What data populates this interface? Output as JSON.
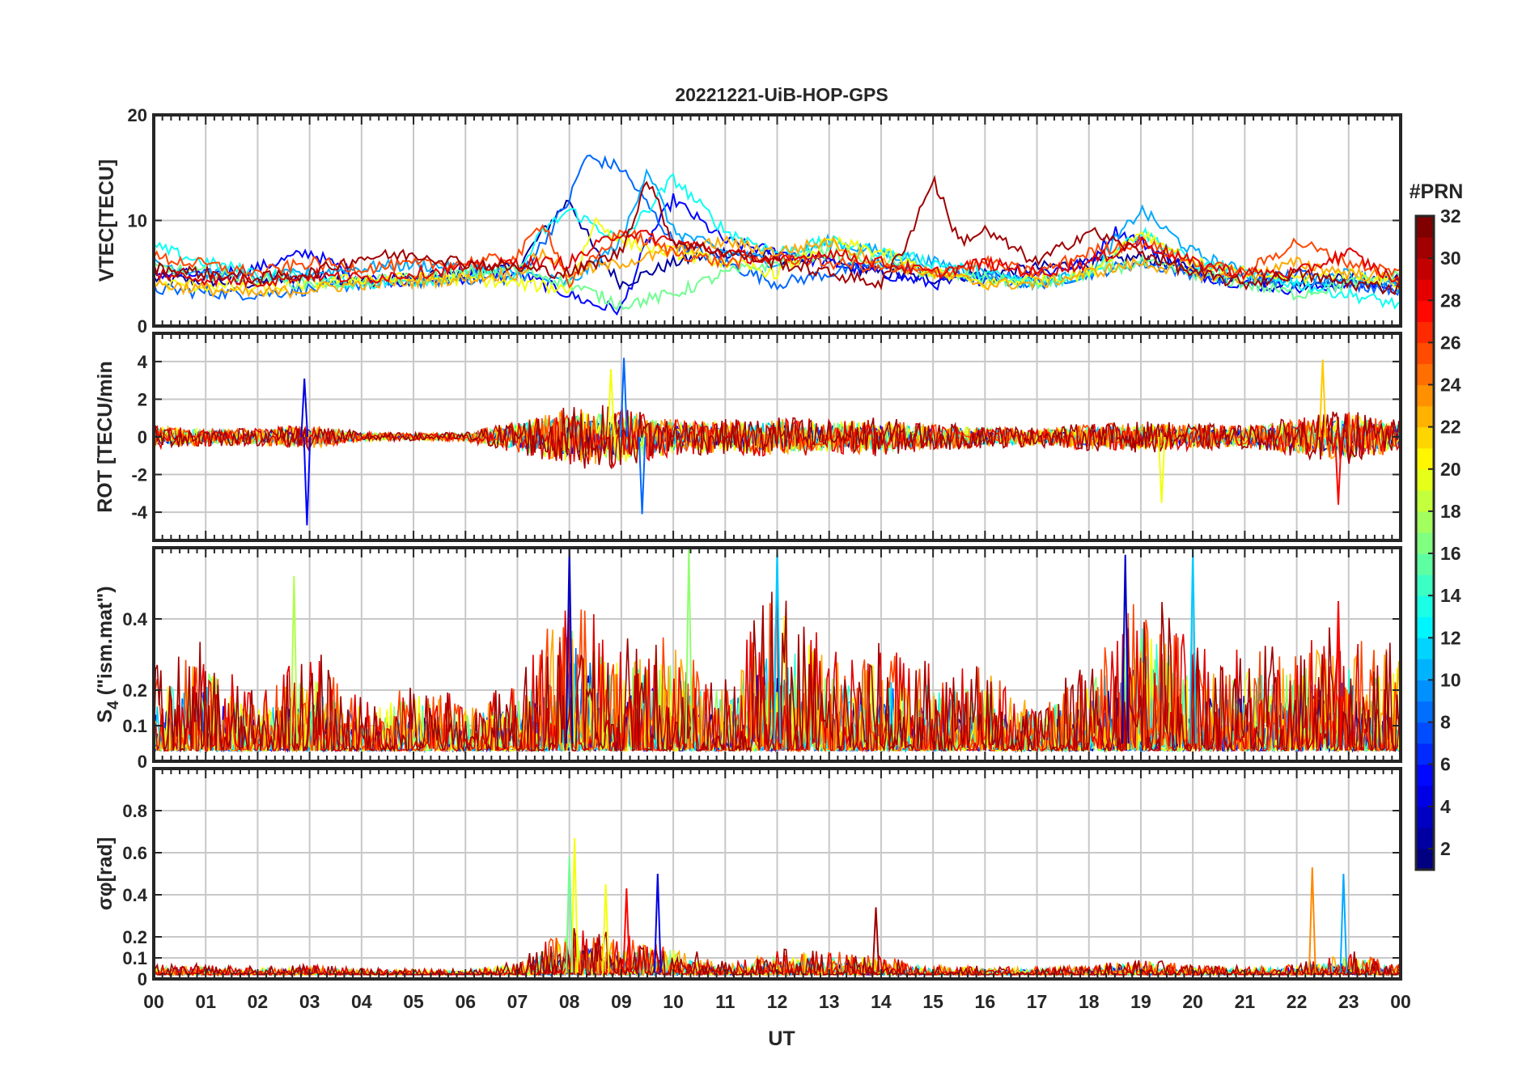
{
  "chart_data": {
    "type": "line",
    "title": "20221221-UiB-HOP-GPS",
    "xlabel": "UT",
    "x_range": [
      0,
      24
    ],
    "x_ticks": [
      "00",
      "01",
      "02",
      "03",
      "04",
      "05",
      "06",
      "07",
      "08",
      "09",
      "10",
      "11",
      "12",
      "13",
      "14",
      "15",
      "16",
      "17",
      "18",
      "19",
      "20",
      "21",
      "22",
      "23",
      "00"
    ],
    "grid": true,
    "colorbar": {
      "label": "#PRN",
      "range": [
        1,
        32
      ],
      "ticks": [
        "2",
        "4",
        "6",
        "8",
        "10",
        "12",
        "14",
        "16",
        "18",
        "20",
        "22",
        "24",
        "26",
        "28",
        "30",
        "32"
      ],
      "colormap": "jet",
      "colors": [
        "#00008f",
        "#0000ff",
        "#0080ff",
        "#00ffff",
        "#80ff80",
        "#ffff00",
        "#ff8000",
        "#ff0000",
        "#800000"
      ]
    },
    "panels": [
      {
        "id": "vtec",
        "ylabel": "VTEC[TECU]",
        "ylim": [
          0,
          20
        ],
        "ytick_values": [
          0,
          10,
          20
        ],
        "ytick_labels": [
          "0",
          "10",
          "20"
        ],
        "series": [
          {
            "prn": 2,
            "x": [
              0,
              1,
              2,
              3,
              4,
              5,
              6,
              7,
              7.5,
              8,
              8.5,
              9,
              10,
              11,
              12,
              13,
              14,
              15,
              16,
              17,
              18,
              19,
              20,
              21,
              22,
              23,
              24
            ],
            "y": [
              4.5,
              4.3,
              4.0,
              4.8,
              4.2,
              4.5,
              5.0,
              5.5,
              9,
              12,
              7,
              4,
              6,
              7,
              6.5,
              6,
              5,
              4.5,
              5,
              5.5,
              6,
              6.5,
              5.5,
              4.5,
              4,
              4.5,
              4.5
            ]
          },
          {
            "prn": 5,
            "x": [
              0,
              1,
              2,
              3,
              4,
              5,
              6,
              7,
              8,
              8.5,
              9,
              9.5,
              10,
              11,
              12,
              13,
              14,
              15,
              16,
              17,
              18,
              18.5,
              19,
              20,
              21,
              22,
              23,
              24
            ],
            "y": [
              5,
              4.8,
              5.5,
              7,
              4.5,
              4.2,
              4.6,
              5,
              3,
              2,
              1.5,
              8,
              12,
              8,
              7,
              6,
              5,
              4,
              4.5,
              5,
              6,
              9,
              8,
              5,
              4,
              3.5,
              4,
              4
            ]
          },
          {
            "prn": 8,
            "x": [
              0,
              1,
              2,
              3,
              4,
              5,
              6,
              7,
              7.5,
              8,
              8.3,
              9,
              10,
              11,
              12,
              13,
              14,
              15,
              16,
              17,
              18,
              19,
              20,
              21,
              22,
              23,
              24
            ],
            "y": [
              3.5,
              3.2,
              3,
              3.5,
              4,
              4.2,
              4.5,
              4.5,
              8,
              12,
              16,
              15,
              8,
              6,
              4,
              5,
              6,
              5,
              4.5,
              4,
              5,
              6,
              5,
              4,
              5,
              4,
              3.5
            ]
          },
          {
            "prn": 10,
            "x": [
              0,
              1,
              2,
              3,
              4,
              5,
              6,
              7,
              8,
              9,
              9.5,
              10,
              11,
              12,
              13,
              14,
              15,
              16,
              17,
              18,
              19,
              20,
              21,
              22,
              23,
              24
            ],
            "y": [
              6,
              5,
              4.5,
              5,
              5.5,
              5.8,
              5.5,
              5,
              4,
              8,
              15,
              9,
              7,
              6,
              8,
              7,
              6,
              5,
              4,
              5,
              11,
              7,
              5,
              4,
              5,
              3.5
            ]
          },
          {
            "prn": 13,
            "x": [
              0,
              1,
              2,
              3,
              4,
              5,
              6,
              7,
              7.5,
              8,
              9,
              10,
              11,
              12,
              13,
              14,
              15,
              16,
              17,
              18,
              19,
              20,
              21,
              22,
              23,
              24
            ],
            "y": [
              7.5,
              6,
              5,
              4.5,
              4,
              4.3,
              4.8,
              5,
              9,
              11,
              8,
              14,
              9,
              7,
              8,
              7,
              6,
              5,
              4,
              5,
              9,
              6,
              5,
              4,
              3,
              2
            ]
          },
          {
            "prn": 16,
            "x": [
              0,
              1,
              2,
              3,
              4,
              5,
              6,
              7,
              8,
              9,
              10,
              11,
              12,
              13,
              14,
              15,
              16,
              17,
              18,
              19,
              20,
              21,
              22,
              23,
              24
            ],
            "y": [
              5.5,
              5,
              4.5,
              4,
              4.2,
              4.5,
              5,
              5.5,
              4,
              2,
              3,
              5,
              6,
              7,
              6,
              5,
              4.5,
              4,
              5,
              6,
              5,
              4,
              3,
              4,
              5
            ]
          },
          {
            "prn": 20,
            "x": [
              0,
              1,
              2,
              3,
              4,
              5,
              6,
              7,
              8,
              8.5,
              9,
              10,
              11,
              12,
              13,
              14,
              15,
              16,
              17,
              18,
              19,
              20,
              21,
              22,
              23,
              24
            ],
            "y": [
              4,
              3.8,
              3.5,
              4,
              4.5,
              4.5,
              4.5,
              4,
              3.5,
              10,
              8,
              7,
              6,
              5,
              8,
              7,
              5,
              4,
              4.5,
              5,
              9,
              6,
              5,
              4.5,
              5,
              4
            ]
          },
          {
            "prn": 23,
            "x": [
              0,
              1,
              2,
              3,
              4,
              5,
              6,
              7,
              7.5,
              8,
              9,
              10,
              11,
              12,
              13,
              14,
              15,
              16,
              17,
              18,
              19,
              20,
              21,
              22,
              23,
              24
            ],
            "y": [
              4,
              3.5,
              3,
              3.5,
              4,
              4.2,
              4.5,
              5,
              7,
              5,
              6,
              7,
              8,
              7,
              8,
              6,
              5,
              4,
              4,
              5,
              6,
              5,
              4.5,
              6,
              5,
              4.5
            ]
          },
          {
            "prn": 26,
            "x": [
              0,
              1,
              2,
              3,
              4,
              5,
              6,
              7,
              7.5,
              8,
              9,
              10,
              11,
              12,
              13,
              14,
              15,
              16,
              17,
              18,
              19,
              20,
              21,
              22,
              23,
              24
            ],
            "y": [
              6.5,
              5.8,
              5,
              6,
              5.5,
              5.8,
              6,
              6.5,
              10,
              4,
              9,
              7,
              6,
              6.5,
              6,
              5.5,
              5,
              6,
              5,
              7,
              8,
              6,
              5,
              8,
              6,
              5
            ]
          },
          {
            "prn": 29,
            "x": [
              0,
              1,
              2,
              3,
              4,
              5,
              6,
              7,
              8,
              9,
              10,
              11,
              12,
              13,
              14,
              15,
              16,
              17,
              18,
              19,
              20,
              21,
              22,
              23,
              24
            ],
            "y": [
              5,
              4.5,
              4.2,
              4.8,
              4.5,
              5,
              5.5,
              6,
              6,
              9,
              8,
              7,
              6,
              7,
              6,
              5,
              6,
              5,
              6,
              8,
              6,
              5,
              5,
              7,
              4
            ]
          },
          {
            "prn": 31,
            "x": [
              0,
              1,
              2,
              3,
              4,
              5,
              6,
              7,
              8,
              9,
              9.5,
              10,
              11,
              12,
              13,
              14,
              14.5,
              15,
              15.5,
              16,
              17,
              18,
              19,
              20,
              21,
              22,
              23,
              24
            ],
            "y": [
              5.5,
              5,
              4.5,
              5,
              6.5,
              6.8,
              6,
              5.5,
              5,
              7,
              14,
              8,
              7,
              6,
              5,
              4,
              8,
              14,
              8,
              9,
              6,
              9,
              7,
              5,
              4,
              5,
              4,
              3.5
            ]
          }
        ]
      },
      {
        "id": "rot",
        "ylabel": "ROT [TECU/min",
        "ylim": [
          -5.5,
          5.5
        ],
        "ytick_values": [
          -4,
          -2,
          0,
          2,
          4
        ],
        "ytick_labels": [
          "-4",
          "-2",
          "0",
          "2",
          "4"
        ],
        "activity_profile": {
          "x": [
            0,
            1,
            2,
            3,
            4,
            5,
            6,
            7,
            8,
            9,
            10,
            11,
            12,
            13,
            14,
            15,
            16,
            17,
            18,
            19,
            20,
            21,
            22,
            23,
            24
          ],
          "amplitude": [
            0.6,
            0.5,
            0.45,
            0.7,
            0.25,
            0.2,
            0.25,
            0.9,
            1.6,
            1.6,
            1.0,
            0.9,
            1.1,
            0.9,
            1.0,
            0.7,
            0.6,
            0.5,
            0.7,
            0.8,
            0.7,
            0.6,
            1.0,
            1.4,
            0.8
          ]
        },
        "peaks": [
          {
            "x": 2.95,
            "y": -4.7,
            "prn": 5
          },
          {
            "x": 2.9,
            "y": 3.1,
            "prn": 4
          },
          {
            "x": 9.05,
            "y": 4.2,
            "prn": 8
          },
          {
            "x": 9.4,
            "y": -4.1,
            "prn": 8
          },
          {
            "x": 8.8,
            "y": 3.6,
            "prn": 20
          },
          {
            "x": 22.5,
            "y": 4.1,
            "prn": 22
          },
          {
            "x": 22.8,
            "y": -3.6,
            "prn": 28
          },
          {
            "x": 19.4,
            "y": -3.5,
            "prn": 20
          }
        ]
      },
      {
        "id": "s4",
        "ylabel": "S4 (\"ism.mat\")",
        "ylabel_main": "S",
        "ylabel_sub": "4",
        "ylabel_rest": " (\"ism.mat\")",
        "ylim": [
          0,
          0.6
        ],
        "ytick_values": [
          0,
          0.1,
          0.2,
          0.4
        ],
        "ytick_labels": [
          "0",
          "0.1",
          "0.2",
          "0.4"
        ],
        "activity_profile": {
          "x": [
            0,
            1,
            2,
            3,
            4,
            5,
            6,
            7,
            8,
            9,
            10,
            11,
            12,
            13,
            14,
            15,
            16,
            17,
            18,
            19,
            20,
            21,
            22,
            23,
            24
          ],
          "amplitude": [
            0.25,
            0.3,
            0.15,
            0.3,
            0.15,
            0.2,
            0.15,
            0.2,
            0.5,
            0.3,
            0.35,
            0.2,
            0.5,
            0.3,
            0.3,
            0.25,
            0.25,
            0.15,
            0.25,
            0.5,
            0.3,
            0.3,
            0.3,
            0.35,
            0.3
          ]
        },
        "peaks": [
          {
            "x": 2.7,
            "y": 0.52,
            "prn": 18
          },
          {
            "x": 8.0,
            "y": 0.6,
            "prn": 3
          },
          {
            "x": 12.0,
            "y": 0.6,
            "prn": 11
          },
          {
            "x": 10.3,
            "y": 0.6,
            "prn": 17
          },
          {
            "x": 20.0,
            "y": 0.6,
            "prn": 11
          },
          {
            "x": 18.7,
            "y": 0.58,
            "prn": 3
          },
          {
            "x": 22.8,
            "y": 0.45,
            "prn": 28
          }
        ]
      },
      {
        "id": "sigma",
        "ylabel": "σφ[rad]",
        "ylim": [
          0,
          1
        ],
        "ytick_values": [
          0,
          0.1,
          0.2,
          0.4,
          0.6,
          0.8
        ],
        "ytick_labels": [
          "0",
          "0.1",
          "0.2",
          "0.4",
          "0.6",
          "0.8"
        ],
        "activity_profile": {
          "x": [
            0,
            1,
            2,
            3,
            4,
            5,
            6,
            7,
            8,
            9,
            10,
            11,
            12,
            13,
            14,
            15,
            16,
            17,
            18,
            19,
            20,
            21,
            22,
            23,
            24
          ],
          "amplitude": [
            0.05,
            0.05,
            0.04,
            0.05,
            0.03,
            0.03,
            0.03,
            0.06,
            0.25,
            0.2,
            0.15,
            0.06,
            0.12,
            0.12,
            0.1,
            0.05,
            0.04,
            0.04,
            0.05,
            0.08,
            0.05,
            0.04,
            0.06,
            0.12,
            0.05
          ]
        },
        "peaks": [
          {
            "x": 8.1,
            "y": 0.67,
            "prn": 20
          },
          {
            "x": 8.0,
            "y": 0.58,
            "prn": 16
          },
          {
            "x": 8.7,
            "y": 0.45,
            "prn": 20
          },
          {
            "x": 9.1,
            "y": 0.43,
            "prn": 28
          },
          {
            "x": 9.7,
            "y": 0.5,
            "prn": 4
          },
          {
            "x": 22.3,
            "y": 0.53,
            "prn": 24
          },
          {
            "x": 22.9,
            "y": 0.5,
            "prn": 10
          },
          {
            "x": 13.9,
            "y": 0.34,
            "prn": 31
          }
        ]
      }
    ]
  }
}
